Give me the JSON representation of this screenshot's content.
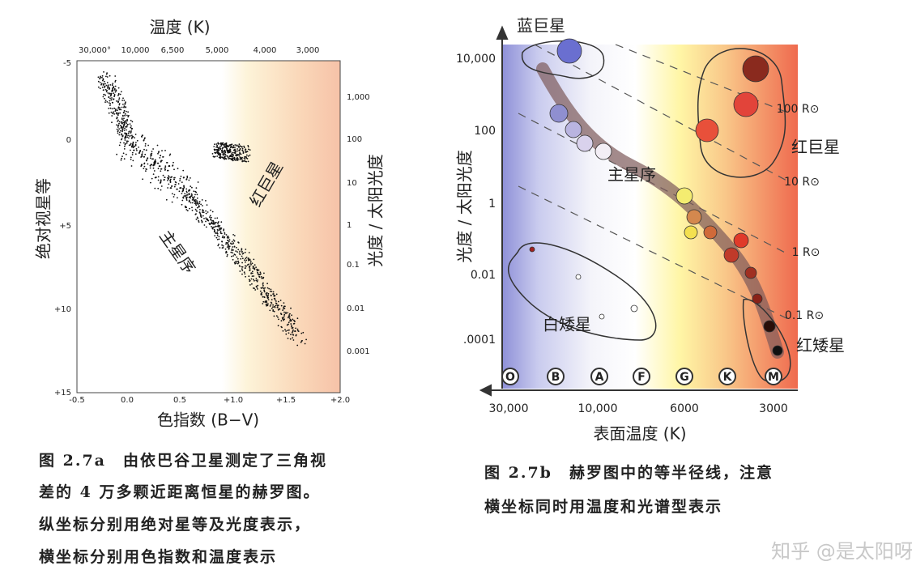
{
  "figure_a": {
    "top_axis_title": "温度 (K)",
    "top_ticks": [
      "30,000°",
      "10,000",
      "6,500",
      "5,000",
      "4,000",
      "3,000"
    ],
    "left_ticks": [
      "-5",
      "0",
      "+5",
      "+10",
      "+15"
    ],
    "bottom_ticks": [
      "-0.5",
      "0.0",
      "0.5",
      "+1.0",
      "+1.5",
      "+2.0"
    ],
    "x_label": "色指数 (B−V)",
    "y_label": "绝对视星等",
    "right_ticks": [
      "1,000",
      "100",
      "10",
      "1",
      "0.1",
      "0.01",
      "0.001"
    ],
    "right_label": "光度 / 太阳光度",
    "annotations": [
      "红巨星",
      "主星序"
    ],
    "caption": [
      "图 2.7a　由依巴谷卫星测定了三角视",
      "差的 4 万多颗近距离恒星的赫罗图。",
      "纵坐标分别用绝对星等及光度表示，",
      "横坐标分别用色指数和温度表示"
    ]
  },
  "figure_b": {
    "y_ticks": [
      "10,000",
      "100",
      "1",
      "0.01",
      ".0001"
    ],
    "y_label": "光度 / 太阳光度",
    "spectral_types": [
      "O",
      "B",
      "A",
      "F",
      "G",
      "K",
      "M"
    ],
    "x_ticks": [
      "30,000",
      "10,000",
      "6000",
      "3000"
    ],
    "x_label": "表面温度 (K)",
    "labels": [
      "蓝巨星",
      "主星序",
      "红巨星",
      "白矮星",
      "红矮星"
    ],
    "radius_labels": [
      "100 R⊙",
      "10 R⊙",
      "1 R⊙",
      "0.1 R⊙"
    ],
    "caption": [
      "图 2.7b　赫罗图中的等半径线，注意",
      "横坐标同时用温度和光谱型表示"
    ]
  },
  "watermark": "知乎 @是太阳呀"
}
